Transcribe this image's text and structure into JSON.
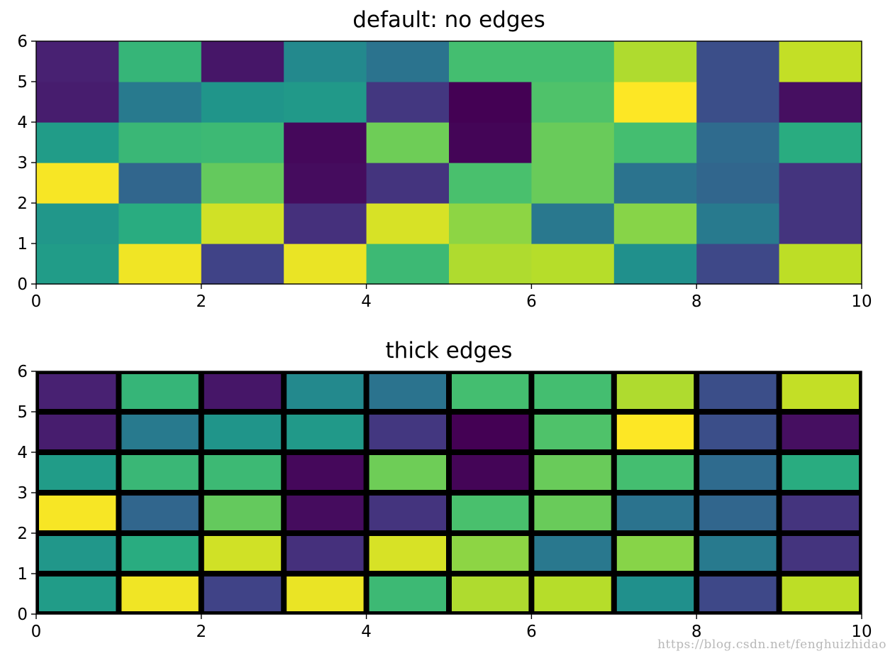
{
  "chart_data": [
    {
      "type": "heatmap",
      "title": "default: no edges",
      "edge": "none",
      "xlim": [
        0,
        10
      ],
      "ylim": [
        0,
        6
      ],
      "xticks": [
        "0",
        "2",
        "4",
        "6",
        "8",
        "10"
      ],
      "yticks": [
        "0",
        "1",
        "2",
        "3",
        "4",
        "5",
        "6"
      ],
      "colormap": "viridis",
      "rows": [
        [
          0.55,
          0.98,
          0.2,
          0.97,
          0.68,
          0.88,
          0.89,
          0.5,
          0.22,
          0.9
        ],
        [
          0.53,
          0.62,
          0.93,
          0.14,
          0.94,
          0.83,
          0.4,
          0.82,
          0.41,
          0.15
        ],
        [
          0.99,
          0.33,
          0.76,
          0.03,
          0.15,
          0.71,
          0.77,
          0.38,
          0.33,
          0.15
        ],
        [
          0.55,
          0.67,
          0.68,
          0.02,
          0.78,
          0.01,
          0.77,
          0.7,
          0.35,
          0.62
        ],
        [
          0.08,
          0.41,
          0.52,
          0.54,
          0.16,
          0.0,
          0.72,
          1.0,
          0.24,
          0.04
        ],
        [
          0.09,
          0.66,
          0.06,
          0.47,
          0.38,
          0.7,
          0.7,
          0.88,
          0.24,
          0.91
        ]
      ]
    },
    {
      "type": "heatmap",
      "title": "thick edges",
      "edge": "black-thick",
      "xlim": [
        0,
        10
      ],
      "ylim": [
        0,
        6
      ],
      "xticks": [
        "0",
        "2",
        "4",
        "6",
        "8",
        "10"
      ],
      "yticks": [
        "0",
        "1",
        "2",
        "3",
        "4",
        "5",
        "6"
      ],
      "colormap": "viridis",
      "rows": [
        [
          0.55,
          0.98,
          0.2,
          0.97,
          0.68,
          0.88,
          0.89,
          0.5,
          0.22,
          0.9
        ],
        [
          0.53,
          0.62,
          0.93,
          0.14,
          0.94,
          0.83,
          0.4,
          0.82,
          0.41,
          0.15
        ],
        [
          0.99,
          0.33,
          0.76,
          0.03,
          0.15,
          0.71,
          0.77,
          0.38,
          0.33,
          0.15
        ],
        [
          0.55,
          0.67,
          0.68,
          0.02,
          0.78,
          0.01,
          0.77,
          0.7,
          0.35,
          0.62
        ],
        [
          0.08,
          0.41,
          0.52,
          0.54,
          0.16,
          0.0,
          0.72,
          1.0,
          0.24,
          0.04
        ],
        [
          0.09,
          0.66,
          0.06,
          0.47,
          0.38,
          0.7,
          0.7,
          0.88,
          0.24,
          0.91
        ]
      ]
    }
  ],
  "watermark": "https://blog.csdn.net/fenghuizhidao"
}
